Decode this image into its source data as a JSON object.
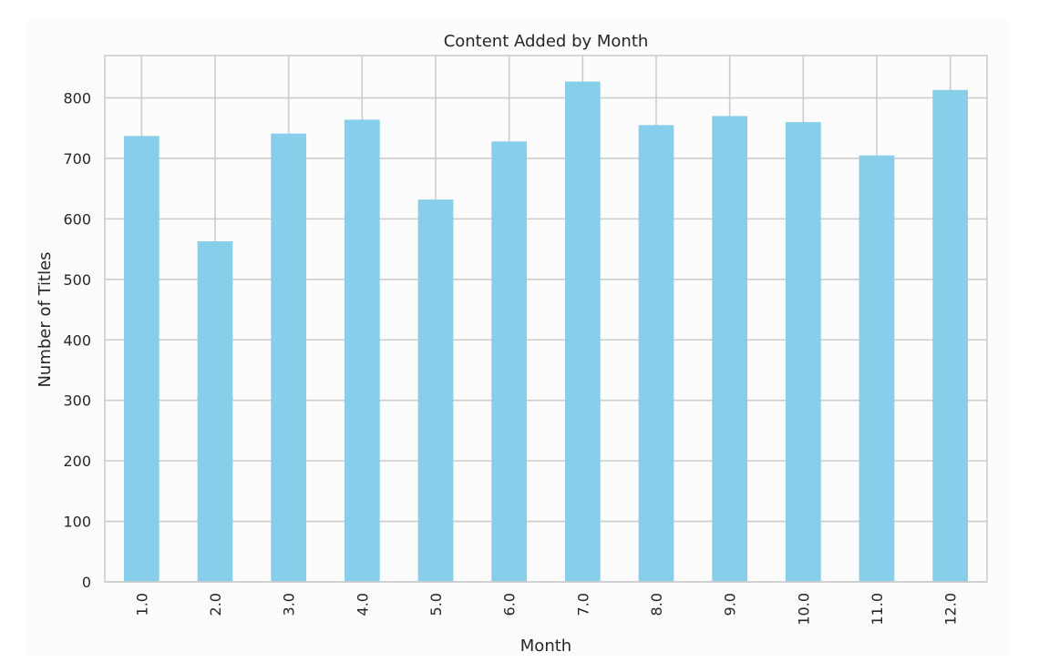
{
  "chart_data": {
    "type": "bar",
    "title": "Content Added by Month",
    "xlabel": "Month",
    "ylabel": "Number of Titles",
    "categories": [
      "1.0",
      "2.0",
      "3.0",
      "4.0",
      "5.0",
      "6.0",
      "7.0",
      "8.0",
      "9.0",
      "10.0",
      "11.0",
      "12.0"
    ],
    "values": [
      737,
      563,
      741,
      764,
      632,
      728,
      827,
      755,
      770,
      760,
      705,
      813
    ],
    "ylim": [
      0,
      870
    ],
    "yticks": [
      0,
      100,
      200,
      300,
      400,
      500,
      600,
      700,
      800
    ],
    "grid": true,
    "bar_color": "#87ceeb",
    "grid_color": "#cccccc",
    "background_color": "#fcfcfc"
  }
}
